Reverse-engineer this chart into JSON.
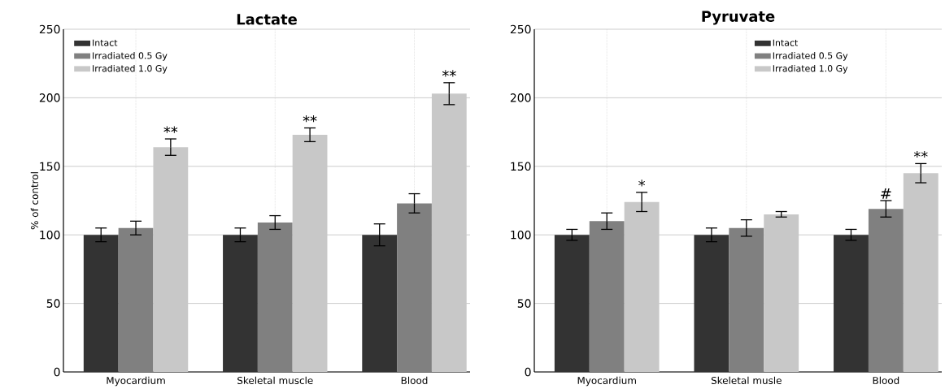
{
  "chart_data": [
    {
      "type": "bar",
      "title": "Lactate",
      "ylabel": "% of control",
      "categories": [
        "Myocardium",
        "Skeletal muscle",
        "Blood"
      ],
      "series": [
        {
          "name": "Intact",
          "color": "#333333",
          "values": [
            100,
            100,
            100
          ],
          "errors": [
            5,
            5,
            8
          ]
        },
        {
          "name": "Irradiated 0.5 Gy",
          "color": "#808080",
          "values": [
            105,
            109,
            123
          ],
          "errors": [
            5,
            5,
            7
          ]
        },
        {
          "name": "Irradiated 1.0 Gy",
          "color": "#c8c8c8",
          "values": [
            164,
            173,
            203
          ],
          "errors": [
            6,
            5,
            8
          ]
        }
      ],
      "ylim": [
        0,
        250
      ],
      "yticks": [
        0,
        50,
        100,
        150,
        200,
        250
      ],
      "grid": true,
      "legend": "top left",
      "annotations": [
        "**",
        "**",
        "**"
      ]
    },
    {
      "type": "bar",
      "title": "Pyruvate",
      "categories": [
        "Myocardium",
        "Skeletal musle",
        "Blood"
      ],
      "series": [
        {
          "name": "Intact",
          "color": "#333333",
          "values": [
            100,
            100,
            100
          ],
          "errors": [
            4,
            5,
            4
          ]
        },
        {
          "name": "Irradiated 0.5 Gy",
          "color": "#808080",
          "values": [
            110,
            105,
            119
          ],
          "errors": [
            6,
            6,
            6
          ]
        },
        {
          "name": "Irradiated 1.0 Gy",
          "color": "#c8c8c8",
          "values": [
            124,
            115,
            145
          ],
          "errors": [
            7,
            2,
            7
          ]
        }
      ],
      "ylim": [
        0,
        250
      ],
      "yticks": [
        0,
        50,
        100,
        150,
        200,
        250
      ],
      "grid": true,
      "legend": "top right",
      "annotations": [
        "*",
        "#",
        "**"
      ]
    }
  ]
}
